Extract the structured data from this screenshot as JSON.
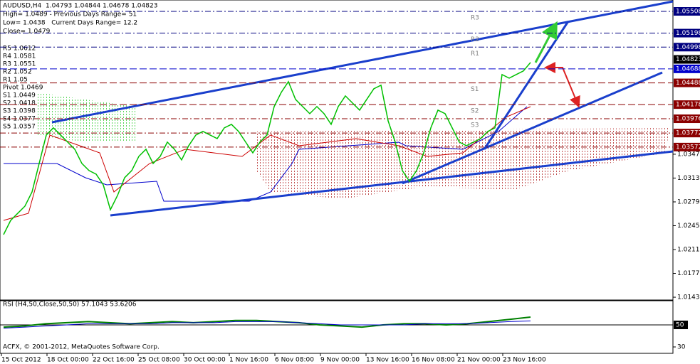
{
  "chart_data": [
    {
      "type": "line",
      "title": "AUDUSD,H4  1.04793 1.04844 1.04678 1.04823",
      "info_lines": [
        "High= 1.0489 - Previous Days Range= 51",
        "Low= 1.0438   Current Days Range= 12.2",
        "Close= 1.0479"
      ],
      "pivot_lines": [
        "R5 1.0612",
        "R4 1.0581",
        "R3 1.0551",
        "R2 1.052",
        "R1 1.05",
        "Pivot 1.0469",
        "S1 1.0449",
        "S2 1.0418",
        "S3 1.0398",
        "S4 1.0377",
        "S5 1.0357"
      ],
      "values": [
        1.02323,
        1.02526,
        1.02628,
        1.02729,
        1.02932,
        1.03338,
        1.03744,
        1.03846,
        1.03744,
        1.03643,
        1.03541,
        1.03338,
        1.03237,
        1.03186,
        1.03034,
        1.02678,
        1.02881,
        1.03135,
        1.03237,
        1.0344,
        1.03541,
        1.03338,
        1.0344,
        1.03643,
        1.03541,
        1.03389,
        1.03592,
        1.03744,
        1.03795,
        1.03744,
        1.03693,
        1.03846,
        1.03896,
        1.03795,
        1.03643,
        1.0349,
        1.03643,
        1.03744,
        1.0415,
        1.04353,
        1.04505,
        1.04252,
        1.0415,
        1.04049,
        1.0415,
        1.04049,
        1.03896,
        1.0415,
        1.04302,
        1.04201,
        1.04099,
        1.04252,
        1.04404,
        1.04455,
        1.03947,
        1.03643,
        1.03237,
        1.03084,
        1.03237,
        1.0349,
        1.03846,
        1.04099,
        1.04049,
        1.03846,
        1.03643,
        1.03592,
        1.03643,
        1.03693,
        1.03795,
        1.03846,
        1.04607,
        1.04556,
        1.04607,
        1.04658,
        1.04779
      ],
      "color": "#00c000",
      "ylim": [
        1.0139,
        1.0565
      ],
      "yticks": [
        {
          "value": 1.0347,
          "label": "1.03470"
        },
        {
          "value": 1.0313,
          "label": "1.03130"
        },
        {
          "value": 1.0279,
          "label": "1.02790"
        },
        {
          "value": 1.0245,
          "label": "1.02450"
        },
        {
          "value": 1.0211,
          "label": "1.02110"
        },
        {
          "value": 1.0177,
          "label": "1.01770"
        },
        {
          "value": 1.0143,
          "label": "1.01430"
        }
      ],
      "price_levels": [
        {
          "value": 1.05508,
          "color": "#000080"
        },
        {
          "value": 1.05198,
          "color": "#000080"
        },
        {
          "value": 1.04998,
          "color": "#000080"
        },
        {
          "value": 1.04823,
          "color": "#000000"
        },
        {
          "value": 1.04688,
          "color": "#0000cc"
        },
        {
          "value": 1.04488,
          "color": "#8b0000"
        },
        {
          "value": 1.04178,
          "color": "#8b0000"
        },
        {
          "value": 1.03976,
          "color": "#8b0000"
        },
        {
          "value": 1.03772,
          "color": "#8b0000"
        },
        {
          "value": 1.03572,
          "color": "#8b0000"
        }
      ],
      "level_labels": [
        "R3",
        "R2",
        "R1",
        "S1",
        "S2",
        "S3"
      ],
      "x_labels": [
        "15 Oct 2012",
        "18 Oct 00:00",
        "22 Oct 16:00",
        "25 Oct 08:00",
        "30 Oct 00:00",
        "1 Nov 16:00",
        "6 Nov 08:00",
        "9 Nov 00:00",
        "13 Nov 16:00",
        "16 Nov 08:00",
        "21 Nov 00:00",
        "23 Nov 16:00"
      ],
      "copyright": "ACFX, © 2001-2012, MetaQuotes Software Corp."
    },
    {
      "type": "line",
      "title": "RSI (H4,50,Close,50,50) 57.1043 53.6206",
      "series": [
        {
          "color": "#008000",
          "values": [
            48,
            49,
            51,
            52,
            53,
            52,
            51,
            52,
            53,
            52,
            53,
            54,
            54,
            53,
            52,
            50,
            49,
            48,
            50,
            51,
            51,
            50,
            51,
            53,
            55,
            57.1043
          ]
        },
        {
          "color": "#0000cc",
          "values": [
            47,
            48,
            49,
            50,
            51,
            51,
            51,
            51,
            52,
            52,
            52,
            53,
            53,
            53,
            52,
            51,
            50,
            50,
            50,
            50,
            51,
            51,
            51,
            52,
            53,
            53.6206
          ]
        }
      ],
      "ylim": [
        24.2,
        71.9
      ],
      "yticks": [
        30
      ],
      "levels": [
        50
      ]
    }
  ]
}
